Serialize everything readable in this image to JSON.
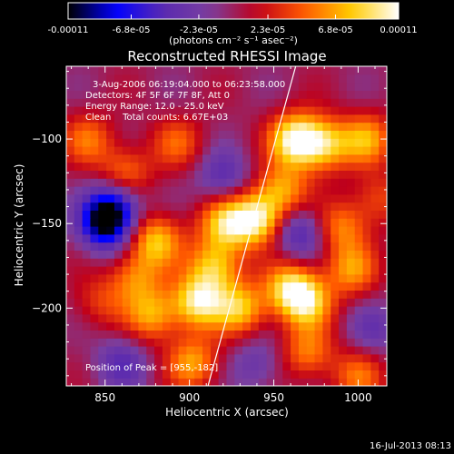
{
  "chart_data": {
    "type": "heatmap",
    "title": "Reconstructed RHESSI Image",
    "colorbar": {
      "min": -0.00011,
      "max": 0.00011,
      "tick_labels": [
        "-0.00011",
        "-6.8e-05",
        "-2.3e-05",
        "2.3e-05",
        "6.8e-05",
        "0.00011"
      ],
      "tick_values": [
        -0.00011,
        -6.8e-05,
        -2.3e-05,
        2.3e-05,
        6.8e-05,
        0.00011
      ],
      "unit_label": "(photons cm⁻² s⁻¹ asec⁻²)",
      "colormap": [
        "#000000",
        "#0000ff",
        "#5a2ab0",
        "#7a3fa0",
        "#c0001a",
        "#ff5a00",
        "#ffcc00",
        "#ffffff"
      ]
    },
    "xlabel": "Heliocentric X (arcsec)",
    "ylabel": "Heliocentric Y (arcsec)",
    "xlim": [
      827,
      1017
    ],
    "ylim": [
      -246,
      -57
    ],
    "xticks": [
      850,
      900,
      950,
      1000
    ],
    "yticks": [
      -100,
      -150,
      -200
    ],
    "annotations": [
      "3-Aug-2006 06:19:04.000 to 06:23:58.000",
      "Detectors: 4F 5F 6F 7F 8F, Att 0",
      "Energy Range: 12.0 - 25.0 keV",
      "Clean    Total counts: 6.67E+03"
    ],
    "peak_label": "Position of Peak = [955,-182]",
    "peak": [
      955,
      -182
    ],
    "limb_line": [
      [
        911,
        -246
      ],
      [
        963,
        -57
      ]
    ],
    "sources": [
      [
        963,
        -100,
        0.95
      ],
      [
        980,
        -103,
        0.7
      ],
      [
        1005,
        -100,
        0.6
      ],
      [
        955,
        -130,
        0.6
      ],
      [
        940,
        -147,
        0.9
      ],
      [
        921,
        -150,
        0.7
      ],
      [
        880,
        -160,
        0.7
      ],
      [
        862,
        -120,
        0.5
      ],
      [
        893,
        -102,
        0.4
      ],
      [
        915,
        -175,
        0.7
      ],
      [
        905,
        -196,
        0.85
      ],
      [
        930,
        -200,
        0.7
      ],
      [
        960,
        -188,
        0.75
      ],
      [
        970,
        -197,
        0.65
      ],
      [
        996,
        -177,
        0.55
      ],
      [
        868,
        -182,
        0.5
      ],
      [
        878,
        -204,
        0.6
      ],
      [
        902,
        -232,
        0.6
      ],
      [
        970,
        -226,
        0.5
      ],
      [
        1000,
        -240,
        0.45
      ],
      [
        990,
        -152,
        0.5
      ],
      [
        850,
        -150,
        -0.9
      ],
      [
        856,
        -138,
        -0.6
      ],
      [
        965,
        -155,
        -0.5
      ],
      [
        920,
        -122,
        -0.4
      ],
      [
        860,
        -232,
        -0.4
      ],
      [
        940,
        -233,
        -0.3
      ],
      [
        1010,
        -212,
        -0.3
      ],
      [
        840,
        -100,
        0.45
      ],
      [
        1012,
        -135,
        0.35
      ],
      [
        847,
        -196,
        0.3
      ]
    ]
  },
  "footer_timestamp": "16-Jul-2013 08:13"
}
